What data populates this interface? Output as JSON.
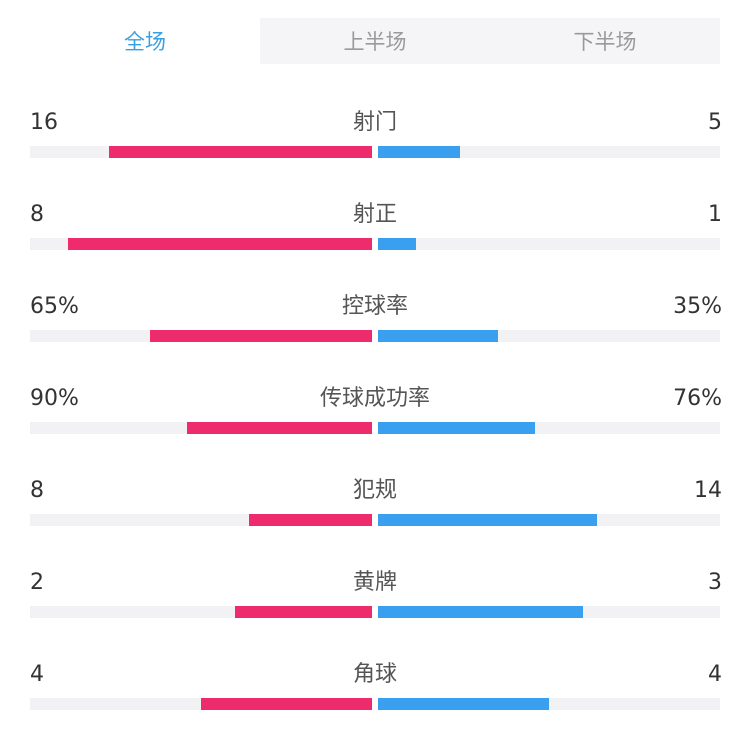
{
  "tabs": [
    {
      "label": "全场",
      "active": true
    },
    {
      "label": "上半场",
      "active": false
    },
    {
      "label": "下半场",
      "active": false
    }
  ],
  "colors": {
    "home": "#ee2b6d",
    "away": "#3a9fee",
    "active_tab": "#3a9fe0",
    "track": "#f2f2f4"
  },
  "stats": [
    {
      "name": "射门",
      "home": "16",
      "away": "5",
      "home_fill": 0.77,
      "away_fill": 0.24
    },
    {
      "name": "射正",
      "home": "8",
      "away": "1",
      "home_fill": 0.89,
      "away_fill": 0.11
    },
    {
      "name": "控球率",
      "home": "65%",
      "away": "35%",
      "home_fill": 0.65,
      "away_fill": 0.35
    },
    {
      "name": "传球成功率",
      "home": "90%",
      "away": "76%",
      "home_fill": 0.54,
      "away_fill": 0.46
    },
    {
      "name": "犯规",
      "home": "8",
      "away": "14",
      "home_fill": 0.36,
      "away_fill": 0.64
    },
    {
      "name": "黄牌",
      "home": "2",
      "away": "3",
      "home_fill": 0.4,
      "away_fill": 0.6
    },
    {
      "name": "角球",
      "home": "4",
      "away": "4",
      "home_fill": 0.5,
      "away_fill": 0.5
    }
  ]
}
